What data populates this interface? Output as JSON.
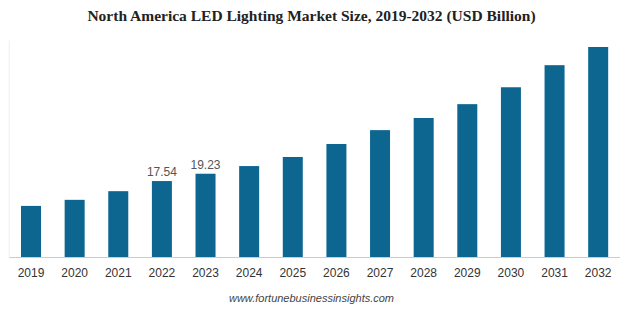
{
  "chart_data": {
    "type": "bar",
    "title": "North America LED Lighting Market Size, 2019-2032 (USD Billion)",
    "source": "www.fortunebusinessinsights.com",
    "categories": [
      "2019",
      "2020",
      "2021",
      "2022",
      "2023",
      "2024",
      "2025",
      "2026",
      "2027",
      "2028",
      "2029",
      "2030",
      "2031",
      "2032"
    ],
    "values": [
      11.8,
      13.2,
      15.2,
      17.54,
      19.23,
      21.0,
      23.1,
      26.1,
      29.3,
      32.1,
      35.3,
      39.2,
      44.3,
      48.5
    ],
    "value_labels": [
      null,
      null,
      null,
      "17.54",
      "19.23",
      null,
      null,
      null,
      null,
      null,
      null,
      null,
      null,
      null
    ],
    "data_labels": true,
    "color": "#0c6690",
    "ylim": [
      0,
      50
    ],
    "tick_labels": "x",
    "grid": false
  }
}
